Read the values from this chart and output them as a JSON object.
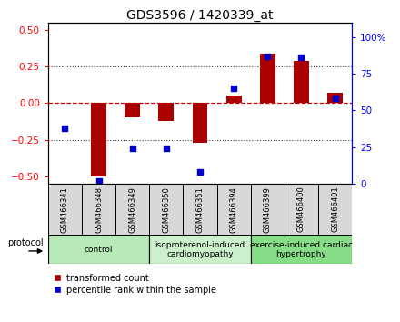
{
  "title": "GDS3596 / 1420339_at",
  "samples": [
    "GSM466341",
    "GSM466348",
    "GSM466349",
    "GSM466350",
    "GSM466351",
    "GSM466394",
    "GSM466399",
    "GSM466400",
    "GSM466401"
  ],
  "transformed_count": [
    0.0,
    -0.5,
    -0.1,
    -0.12,
    -0.27,
    0.05,
    0.34,
    0.29,
    0.07
  ],
  "percentile_rank": [
    38,
    2,
    24,
    24,
    8,
    65,
    87,
    86,
    58
  ],
  "groups": [
    {
      "label": "control",
      "start": 0,
      "end": 3,
      "color": "#b8e8b8"
    },
    {
      "label": "isoproterenol-induced\ncardiomyopathy",
      "start": 3,
      "end": 6,
      "color": "#ccf0cc"
    },
    {
      "label": "exercise-induced cardiac\nhypertrophy",
      "start": 6,
      "end": 9,
      "color": "#88dd88"
    }
  ],
  "ylim_left": [
    -0.55,
    0.55
  ],
  "ylim_right": [
    0,
    110
  ],
  "yticks_left": [
    -0.5,
    -0.25,
    0.0,
    0.25,
    0.5
  ],
  "yticks_right": [
    0,
    25,
    50,
    75,
    100
  ],
  "bar_color": "#aa0000",
  "dot_color": "#0000cc",
  "zero_line_color": "#cc0000",
  "grid_color": "#444444",
  "sample_box_color": "#d8d8d8",
  "fig_bg": "#ffffff"
}
